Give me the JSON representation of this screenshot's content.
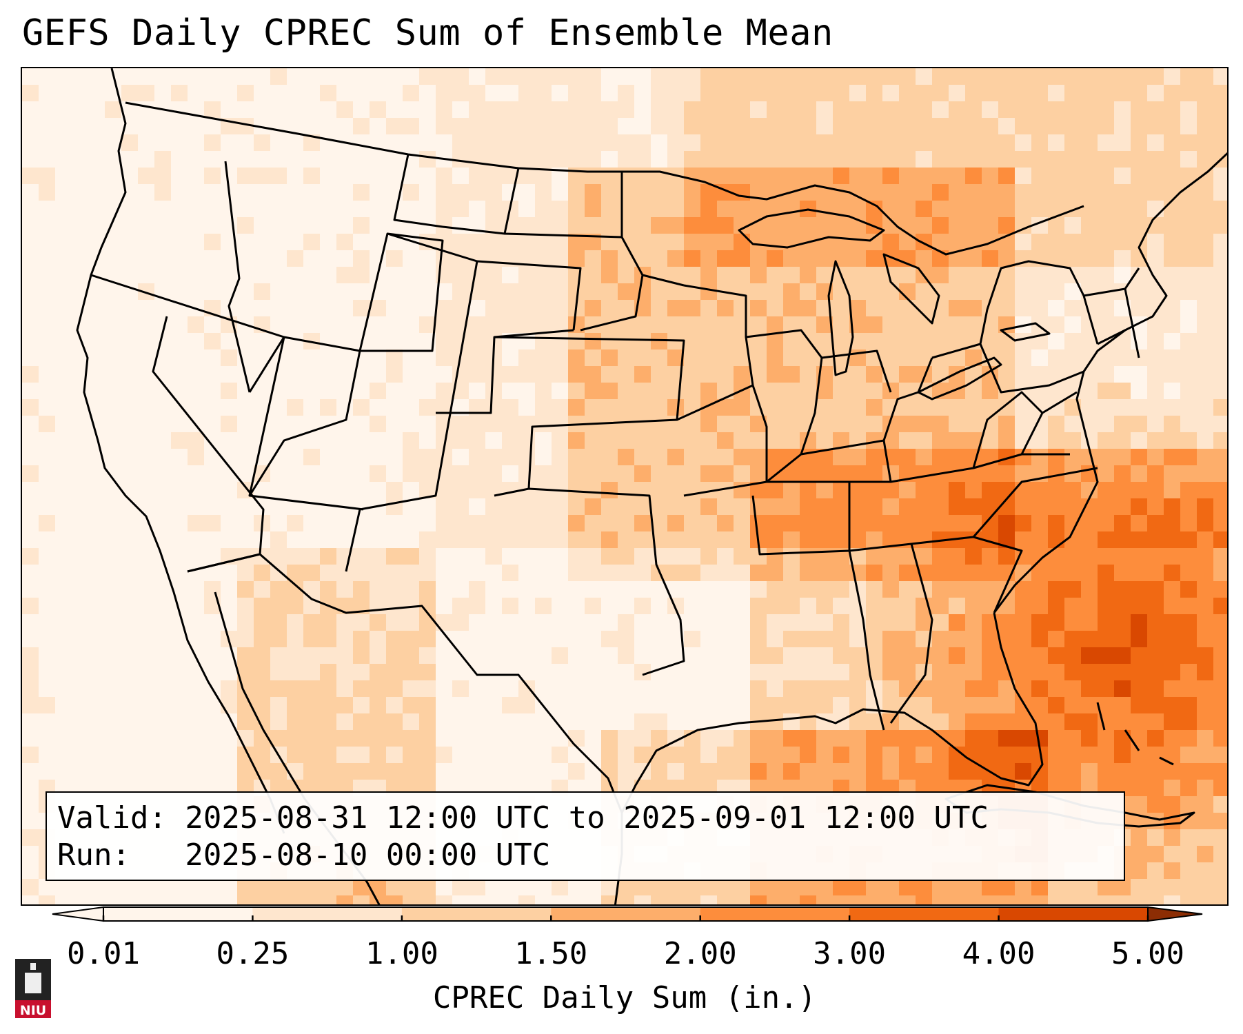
{
  "title": "GEFS Daily CPREC Sum of Ensemble Mean",
  "info": {
    "valid_line": "Valid: 2025-08-31 12:00 UTC to 2025-09-01 12:00 UTC",
    "run_line": "Run:   2025-08-10 00:00 UTC"
  },
  "colorbar": {
    "label": "CPREC Daily Sum (in.)",
    "ticks": [
      "0.01",
      "0.25",
      "1.00",
      "1.50",
      "2.00",
      "3.00",
      "4.00",
      "5.00"
    ],
    "colors": [
      "#fff5eb",
      "#fee6ce",
      "#fdd0a2",
      "#fdae6b",
      "#fd8d3c",
      "#f16913",
      "#d94801",
      "#8c2d04"
    ],
    "extend": "both"
  },
  "colors": {
    "border": "#000000",
    "background": "#ffffff"
  },
  "logo": {
    "text": "NIU",
    "accent": "#c8102e"
  },
  "icons": {
    "logo_icon": "university-tower-icon"
  }
}
